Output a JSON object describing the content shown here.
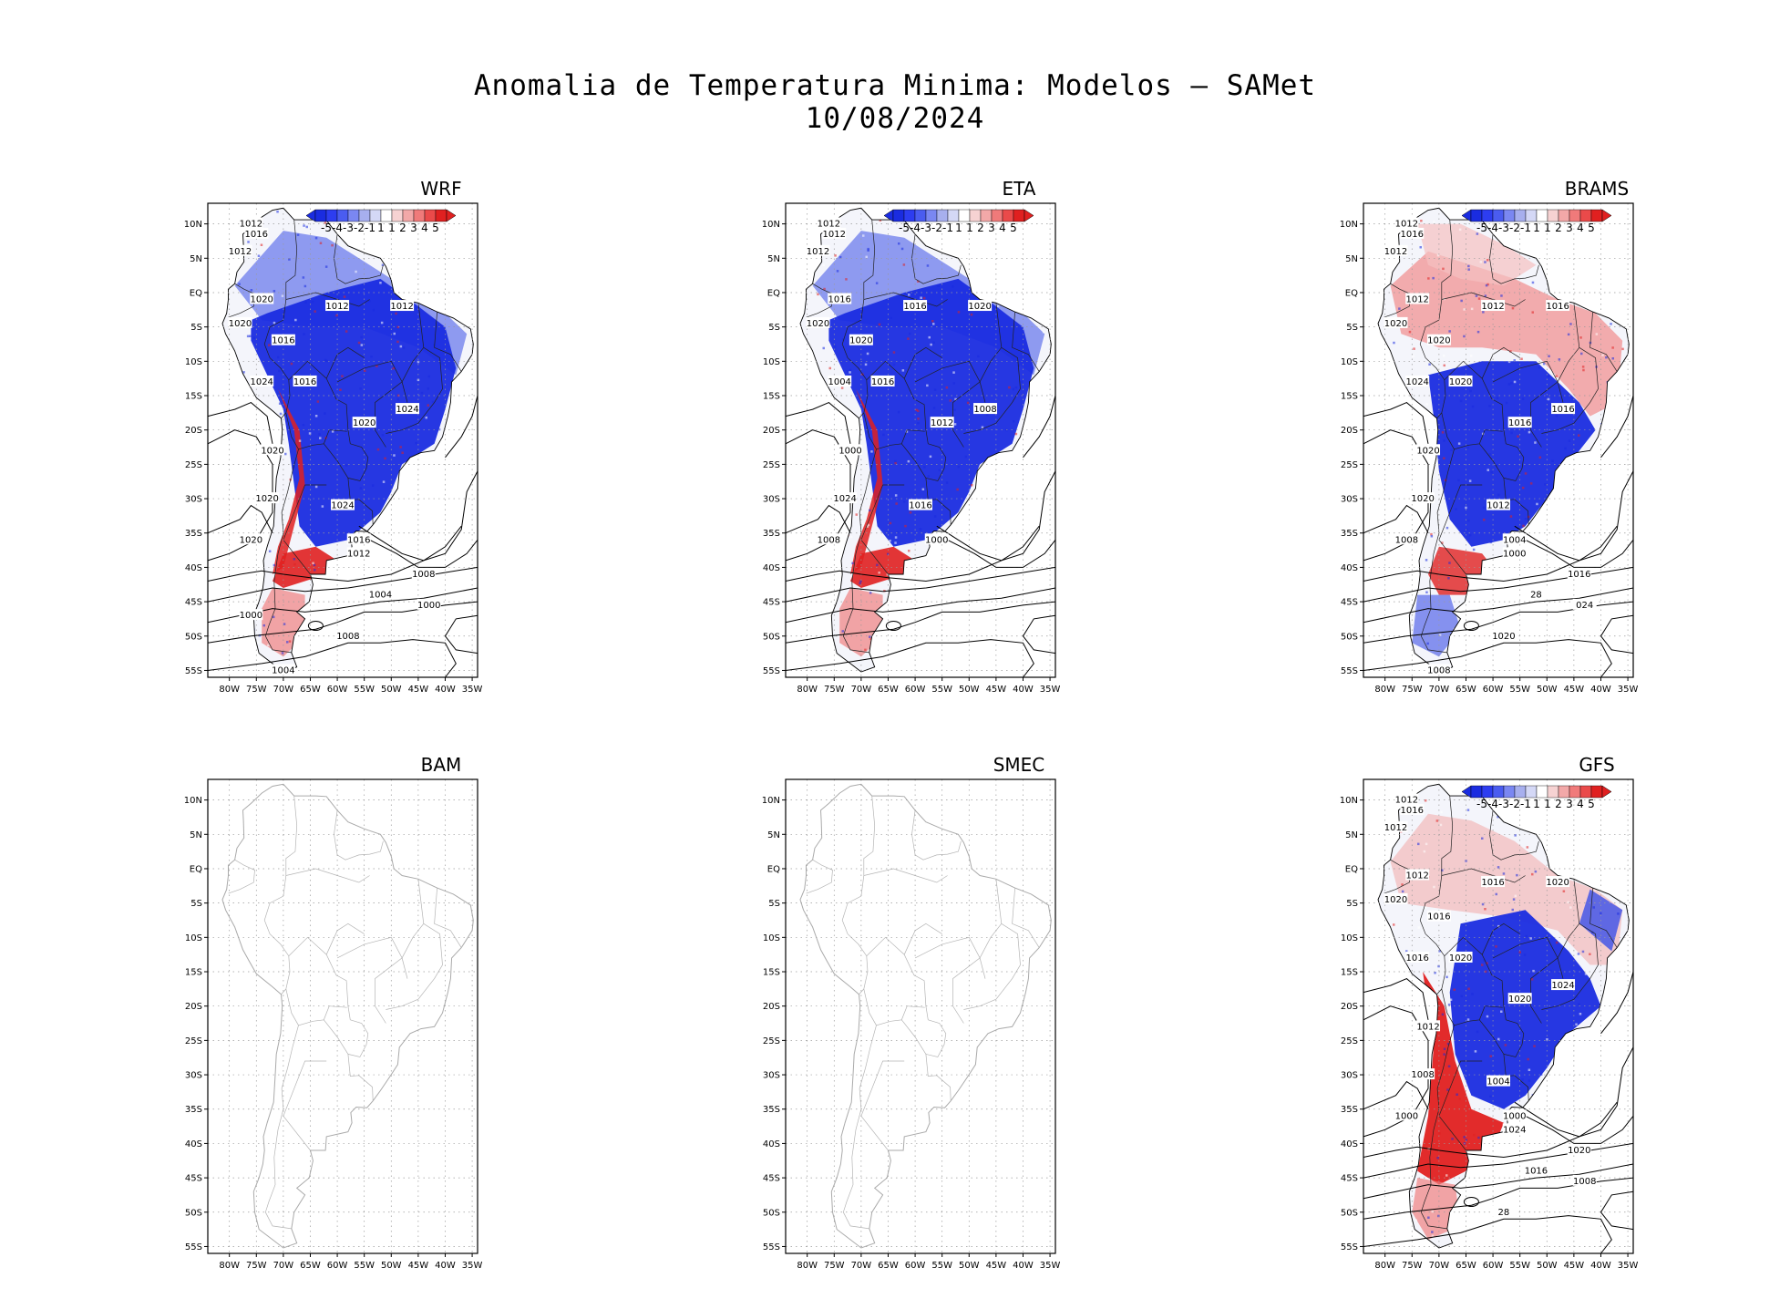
{
  "figure": {
    "title_line1": "Anomalia de Temperatura Minima: Modelos — SAMet",
    "title_line2": "10/08/2024"
  },
  "axes": {
    "lat_labels": [
      "10N",
      "5N",
      "EQ",
      "5S",
      "10S",
      "15S",
      "20S",
      "25S",
      "30S",
      "35S",
      "40S",
      "45S",
      "50S",
      "55S"
    ],
    "lon_labels": [
      "80W",
      "75W",
      "70W",
      "65W",
      "60W",
      "55W",
      "50W",
      "45W",
      "40W",
      "35W"
    ]
  },
  "colorbar": {
    "labels": [
      "-5",
      "-4",
      "-3",
      "-2",
      "-1",
      "1",
      "1",
      "2",
      "3",
      "4",
      "5"
    ],
    "colors": [
      "#1a2ce0",
      "#2d3df0",
      "#4a5cf0",
      "#7a87f2",
      "#a7afee",
      "#d4d8f6",
      "#ffffff",
      "#f6d2d2",
      "#f2a8a8",
      "#f07a7a",
      "#ea4a4a",
      "#e02020"
    ]
  },
  "panels": [
    {
      "id": "wrf",
      "title": "WRF",
      "has_data": true,
      "style": "blue-dominant",
      "isobars": [
        "1012",
        "1016",
        "1012",
        "1020",
        "1012",
        "1012",
        "1016",
        "1020",
        "1016",
        "1020",
        "1024",
        "1024",
        "1020",
        "1020",
        "1024",
        "1020",
        "1016",
        "1012",
        "1008",
        "1004",
        "1000",
        "1008",
        "1004",
        "1000"
      ]
    },
    {
      "id": "eta",
      "title": "ETA",
      "has_data": true,
      "style": "blue-dominant",
      "isobars": [
        "1012",
        "1012",
        "1012",
        "1016",
        "1016",
        "1020",
        "1020",
        "1020",
        "1016",
        "1012",
        "1008",
        "1004",
        "1000",
        "1024",
        "1016",
        "1008",
        "1000"
      ]
    },
    {
      "id": "brams",
      "title": "BRAMS",
      "has_data": true,
      "style": "mixed",
      "isobars": [
        "1012",
        "1016",
        "1012",
        "1012",
        "1012",
        "1016",
        "1020",
        "1020",
        "1020",
        "1016",
        "1016",
        "1024",
        "1020",
        "1020",
        "1012",
        "1008",
        "1004",
        "1000",
        "1016",
        "28",
        "024",
        "1020",
        "1008"
      ]
    },
    {
      "id": "bam",
      "title": "BAM",
      "has_data": false,
      "style": "outline",
      "isobars": []
    },
    {
      "id": "smec",
      "title": "SMEC",
      "has_data": false,
      "style": "outline",
      "isobars": []
    },
    {
      "id": "gfs",
      "title": "GFS",
      "has_data": true,
      "style": "red-south",
      "isobars": [
        "1012",
        "1016",
        "1012",
        "1012",
        "1016",
        "1020",
        "1016",
        "1020",
        "1020",
        "1020",
        "1024",
        "1016",
        "1012",
        "1008",
        "1004",
        "1000",
        "1000",
        "1024",
        "1020",
        "1016",
        "1008",
        "28"
      ]
    }
  ]
}
